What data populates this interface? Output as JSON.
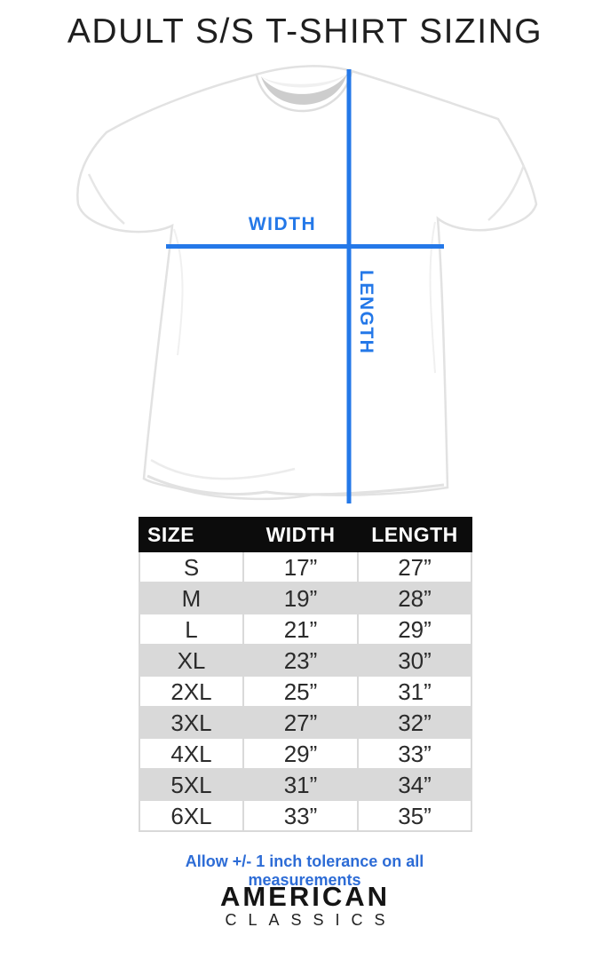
{
  "title": "ADULT S/S T-SHIRT SIZING",
  "diagram": {
    "width_label": "WIDTH",
    "length_label": "LENGTH",
    "accent_color": "#2478e8"
  },
  "table": {
    "columns": [
      "SIZE",
      "WIDTH",
      "LENGTH"
    ],
    "header_bg": "#0c0c0c",
    "alt_row_color": "#d9d9d9",
    "rows": [
      {
        "size": "S",
        "width": "17”",
        "length": "27”"
      },
      {
        "size": "M",
        "width": "19”",
        "length": "28”"
      },
      {
        "size": "L",
        "width": "21”",
        "length": "29”"
      },
      {
        "size": "XL",
        "width": "23”",
        "length": "30”"
      },
      {
        "size": "2XL",
        "width": "25”",
        "length": "31”"
      },
      {
        "size": "3XL",
        "width": "27”",
        "length": "32”"
      },
      {
        "size": "4XL",
        "width": "29”",
        "length": "33”"
      },
      {
        "size": "5XL",
        "width": "31”",
        "length": "34”"
      },
      {
        "size": "6XL",
        "width": "33”",
        "length": "35”"
      }
    ]
  },
  "note": "Allow +/- 1 inch tolerance on all measurements",
  "note_color": "#2d6cd6",
  "brand": {
    "line1": "AMERICAN",
    "line2": "CLASSICS"
  }
}
